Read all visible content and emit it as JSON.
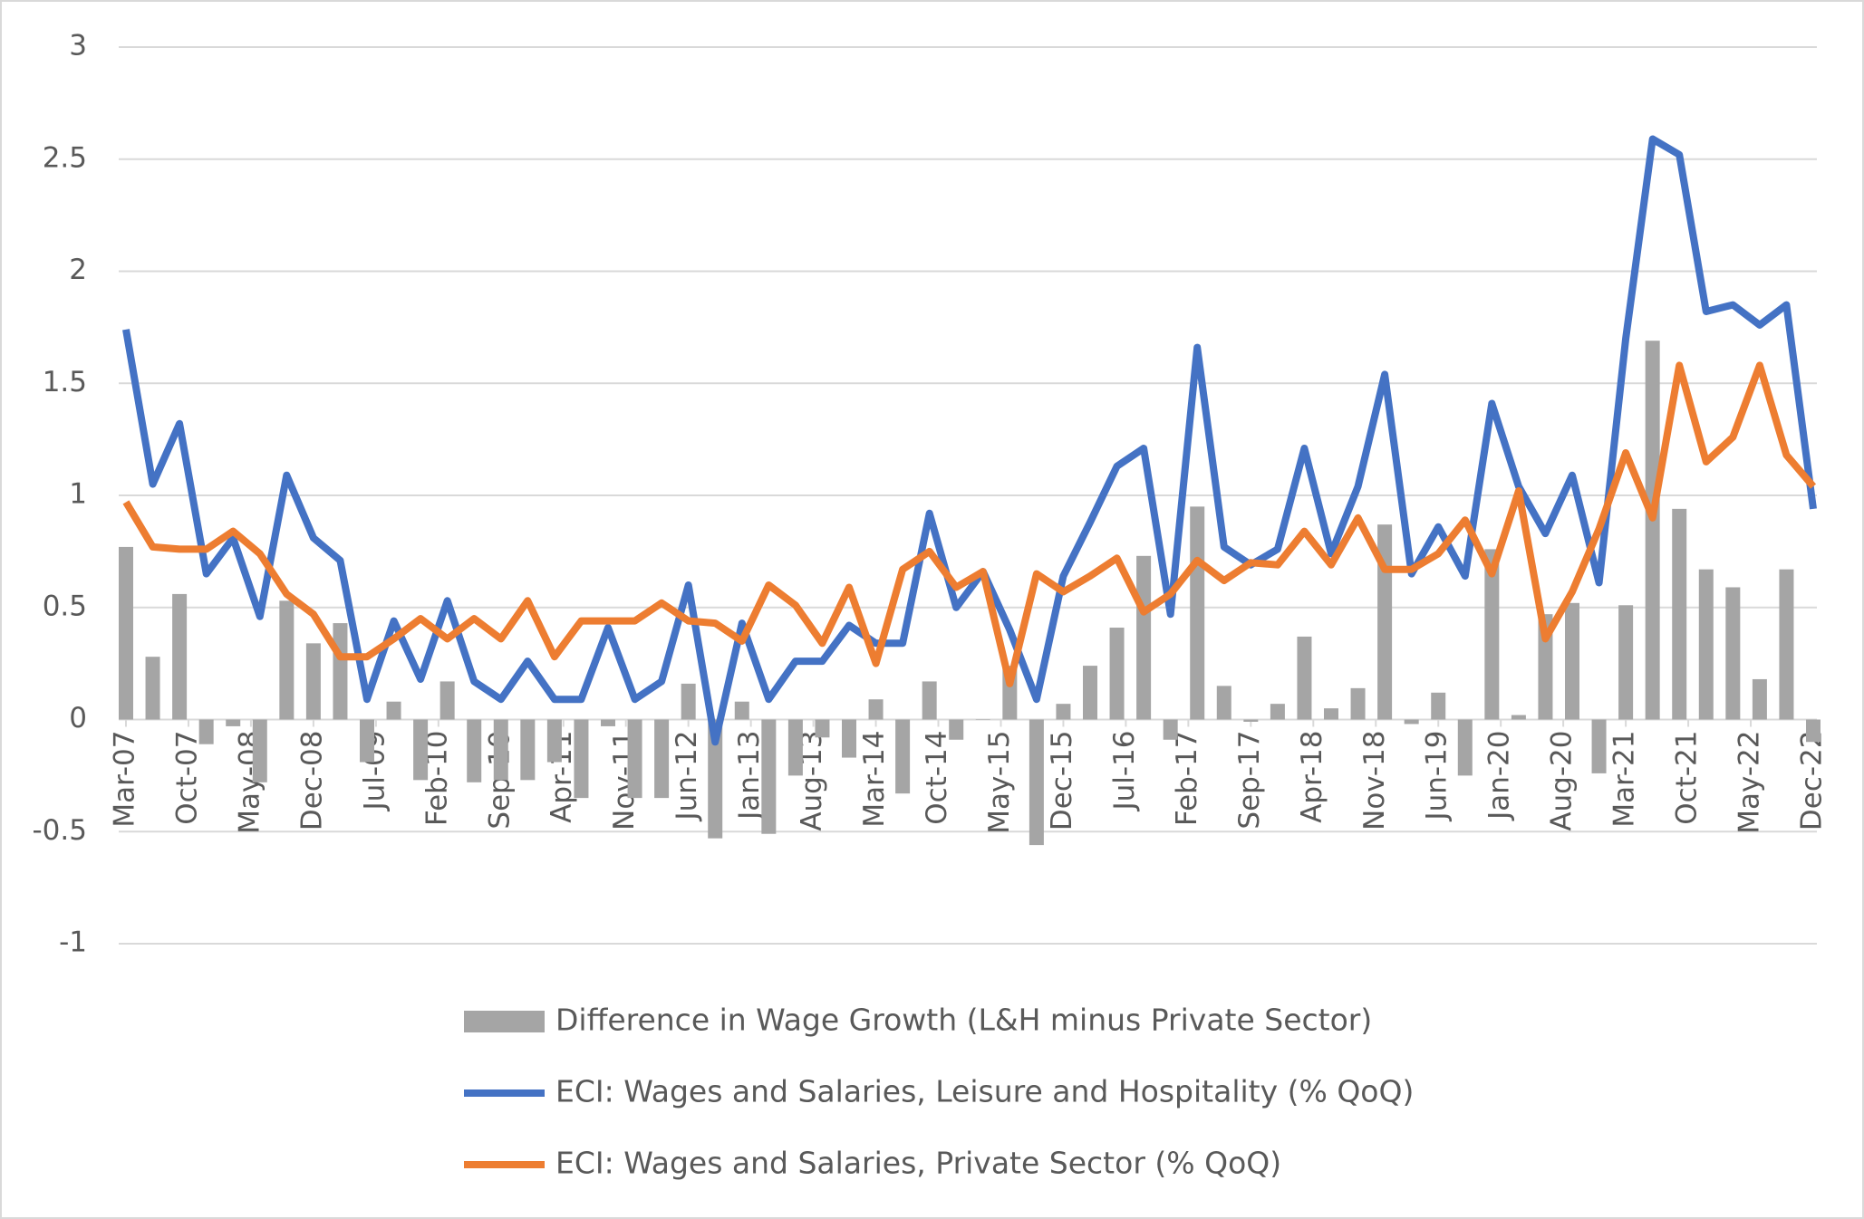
{
  "chart_data": {
    "type": "combo",
    "x": [
      "2007-03",
      "2007-06",
      "2007-09",
      "2007-12",
      "2008-03",
      "2008-06",
      "2008-09",
      "2008-12",
      "2009-03",
      "2009-06",
      "2009-09",
      "2009-12",
      "2010-03",
      "2010-06",
      "2010-09",
      "2010-12",
      "2011-03",
      "2011-06",
      "2011-09",
      "2011-12",
      "2012-03",
      "2012-06",
      "2012-09",
      "2012-12",
      "2013-03",
      "2013-06",
      "2013-09",
      "2013-12",
      "2014-03",
      "2014-06",
      "2014-09",
      "2014-12",
      "2015-03",
      "2015-06",
      "2015-09",
      "2015-12",
      "2016-03",
      "2016-06",
      "2016-09",
      "2016-12",
      "2017-03",
      "2017-06",
      "2017-09",
      "2017-12",
      "2018-03",
      "2018-06",
      "2018-09",
      "2018-12",
      "2019-03",
      "2019-06",
      "2019-09",
      "2019-12",
      "2020-03",
      "2020-06",
      "2020-09",
      "2020-12",
      "2021-03",
      "2021-06",
      "2021-09",
      "2021-12",
      "2022-03",
      "2022-06",
      "2022-09",
      "2022-12"
    ],
    "xlim": [
      "2007-03",
      "2022-12"
    ],
    "xticks": [
      {
        "value": "2007-03",
        "label": "Mar-07"
      },
      {
        "value": "2007-10",
        "label": "Oct-07"
      },
      {
        "value": "2008-05",
        "label": "May-08"
      },
      {
        "value": "2008-12",
        "label": "Dec-08"
      },
      {
        "value": "2009-07",
        "label": "Jul-09"
      },
      {
        "value": "2010-02",
        "label": "Feb-10"
      },
      {
        "value": "2010-09",
        "label": "Sep-10"
      },
      {
        "value": "2011-04",
        "label": "Apr-11"
      },
      {
        "value": "2011-11",
        "label": "Nov-11"
      },
      {
        "value": "2012-06",
        "label": "Jun-12"
      },
      {
        "value": "2013-01",
        "label": "Jan-13"
      },
      {
        "value": "2013-08",
        "label": "Aug-13"
      },
      {
        "value": "2014-03",
        "label": "Mar-14"
      },
      {
        "value": "2014-10",
        "label": "Oct-14"
      },
      {
        "value": "2015-05",
        "label": "May-15"
      },
      {
        "value": "2015-12",
        "label": "Dec-15"
      },
      {
        "value": "2016-07",
        "label": "Jul-16"
      },
      {
        "value": "2017-02",
        "label": "Feb-17"
      },
      {
        "value": "2017-09",
        "label": "Sep-17"
      },
      {
        "value": "2018-04",
        "label": "Apr-18"
      },
      {
        "value": "2018-11",
        "label": "Nov-18"
      },
      {
        "value": "2019-06",
        "label": "Jun-19"
      },
      {
        "value": "2020-01",
        "label": "Jan-20"
      },
      {
        "value": "2020-08",
        "label": "Aug-20"
      },
      {
        "value": "2021-03",
        "label": "Mar-21"
      },
      {
        "value": "2021-10",
        "label": "Oct-21"
      },
      {
        "value": "2022-05",
        "label": "May-22"
      },
      {
        "value": "2022-12",
        "label": "Dec-22"
      }
    ],
    "ylim": [
      -1,
      3
    ],
    "yticks": [
      -1,
      -0.5,
      0,
      0.5,
      1,
      1.5,
      2,
      2.5,
      3
    ],
    "grid": true,
    "legend": "bottom",
    "series": [
      {
        "name": "Difference in Wage Growth (L&H minus Private Sector)",
        "type": "bar",
        "color": "#a5a5a5",
        "values": [
          0.77,
          0.28,
          0.56,
          -0.11,
          -0.03,
          -0.28,
          0.53,
          0.34,
          0.43,
          -0.19,
          0.08,
          -0.27,
          0.17,
          -0.28,
          -0.27,
          -0.27,
          -0.19,
          -0.35,
          -0.03,
          -0.35,
          -0.35,
          0.16,
          -0.53,
          0.08,
          -0.51,
          -0.25,
          -0.08,
          -0.17,
          0.09,
          -0.33,
          0.17,
          -0.09,
          0.0,
          0.24,
          -0.56,
          0.07,
          0.24,
          0.41,
          0.73,
          -0.09,
          0.95,
          0.15,
          -0.01,
          0.07,
          0.37,
          0.05,
          0.14,
          0.87,
          -0.02,
          0.12,
          -0.25,
          0.76,
          0.02,
          0.47,
          0.52,
          -0.24,
          0.51,
          1.69,
          0.94,
          0.67,
          0.59,
          0.18,
          0.67,
          -0.1
        ]
      },
      {
        "name": "ECI: Wages and Salaries, Leisure and Hospitality (% QoQ)",
        "type": "line",
        "color": "#4472c4",
        "values": [
          1.74,
          1.05,
          1.32,
          0.65,
          0.81,
          0.46,
          1.09,
          0.81,
          0.71,
          0.09,
          0.44,
          0.18,
          0.53,
          0.17,
          0.09,
          0.26,
          0.09,
          0.09,
          0.41,
          0.09,
          0.17,
          0.6,
          -0.1,
          0.43,
          0.09,
          0.26,
          0.26,
          0.42,
          0.34,
          0.34,
          0.92,
          0.5,
          0.66,
          0.4,
          0.09,
          0.64,
          0.88,
          1.13,
          1.21,
          0.47,
          1.66,
          0.77,
          0.69,
          0.76,
          1.21,
          0.74,
          1.04,
          1.54,
          0.65,
          0.86,
          0.64,
          1.41,
          1.04,
          0.83,
          1.09,
          0.61,
          1.7,
          2.59,
          2.52,
          1.82,
          1.85,
          1.76,
          1.85,
          0.94
        ]
      },
      {
        "name": "ECI: Wages and Salaries, Private Sector (% QoQ)",
        "type": "line",
        "color": "#ed7d31",
        "values": [
          0.97,
          0.77,
          0.76,
          0.76,
          0.84,
          0.74,
          0.56,
          0.47,
          0.28,
          0.28,
          0.36,
          0.45,
          0.36,
          0.45,
          0.36,
          0.53,
          0.28,
          0.44,
          0.44,
          0.44,
          0.52,
          0.44,
          0.43,
          0.35,
          0.6,
          0.51,
          0.34,
          0.59,
          0.25,
          0.67,
          0.75,
          0.59,
          0.66,
          0.16,
          0.65,
          0.57,
          0.64,
          0.72,
          0.48,
          0.56,
          0.71,
          0.62,
          0.7,
          0.69,
          0.84,
          0.69,
          0.9,
          0.67,
          0.67,
          0.74,
          0.89,
          0.65,
          1.02,
          0.36,
          0.57,
          0.85,
          1.19,
          0.9,
          1.58,
          1.15,
          1.26,
          1.58,
          1.18,
          1.04
        ]
      }
    ]
  }
}
